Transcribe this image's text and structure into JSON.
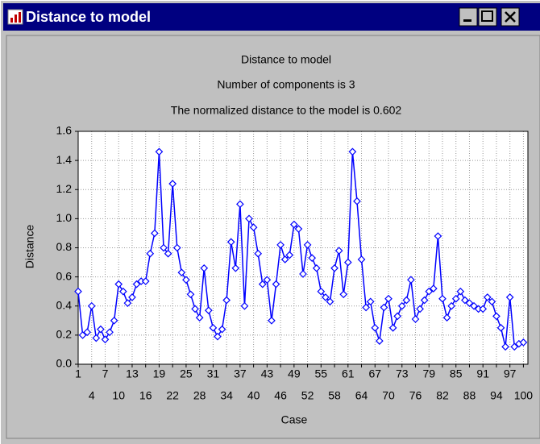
{
  "window": {
    "title": "Distance to model"
  },
  "chart_data": {
    "type": "line",
    "title": "Distance to model",
    "subtitle": [
      "Number of components is 3",
      "The normalized distance to the model is 0.602"
    ],
    "x_label": "Case",
    "y_label": "Distance",
    "x": [
      1,
      2,
      3,
      4,
      5,
      6,
      7,
      8,
      9,
      10,
      11,
      12,
      13,
      14,
      15,
      16,
      17,
      18,
      19,
      20,
      21,
      22,
      23,
      24,
      25,
      26,
      27,
      28,
      29,
      30,
      31,
      32,
      33,
      34,
      35,
      36,
      37,
      38,
      39,
      40,
      41,
      42,
      43,
      44,
      45,
      46,
      47,
      48,
      49,
      50,
      51,
      52,
      53,
      54,
      55,
      56,
      57,
      58,
      59,
      60,
      61,
      62,
      63,
      64,
      65,
      66,
      67,
      68,
      69,
      70,
      71,
      72,
      73,
      74,
      75,
      76,
      77,
      78,
      79,
      80,
      81,
      82,
      83,
      84,
      85,
      86,
      87,
      88,
      89,
      90,
      91,
      92,
      93,
      94,
      95,
      96,
      97,
      98,
      99,
      100
    ],
    "series": [
      {
        "color": "#0000ff",
        "values": [
          0.5,
          0.2,
          0.22,
          0.4,
          0.18,
          0.24,
          0.17,
          0.22,
          0.3,
          0.55,
          0.5,
          0.42,
          0.46,
          0.55,
          0.57,
          0.57,
          0.76,
          0.9,
          1.46,
          0.8,
          0.76,
          1.24,
          0.8,
          0.63,
          0.58,
          0.48,
          0.38,
          0.32,
          0.66,
          0.37,
          0.25,
          0.19,
          0.24,
          0.44,
          0.84,
          0.66,
          1.1,
          0.4,
          1.0,
          0.94,
          0.76,
          0.55,
          0.58,
          0.3,
          0.55,
          0.82,
          0.72,
          0.75,
          0.96,
          0.93,
          0.62,
          0.82,
          0.73,
          0.66,
          0.5,
          0.46,
          0.43,
          0.66,
          0.78,
          0.48,
          0.7,
          1.46,
          1.12,
          0.72,
          0.39,
          0.43,
          0.25,
          0.16,
          0.39,
          0.45,
          0.25,
          0.33,
          0.4,
          0.44,
          0.58,
          0.31,
          0.38,
          0.44,
          0.5,
          0.52,
          0.88,
          0.45,
          0.32,
          0.4,
          0.45,
          0.5,
          0.44,
          0.42,
          0.4,
          0.38,
          0.38,
          0.46,
          0.43,
          0.33,
          0.25,
          0.12,
          0.46,
          0.12,
          0.14,
          0.15
        ]
      }
    ],
    "xlim": [
      1,
      101
    ],
    "xticks": [
      1,
      4,
      7,
      10,
      13,
      16,
      19,
      22,
      25,
      28,
      31,
      34,
      37,
      40,
      43,
      46,
      49,
      52,
      55,
      58,
      61,
      64,
      67,
      70,
      73,
      76,
      79,
      82,
      85,
      88,
      91,
      94,
      97,
      100
    ],
    "ylim": [
      0,
      1.6
    ],
    "yticks": [
      {
        "value": 0,
        "label": "0.0"
      },
      {
        "value": 0.2,
        "label": "0.2"
      },
      {
        "value": 0.4,
        "label": "0.4"
      },
      {
        "value": 0.6,
        "label": "0.6"
      },
      {
        "value": 0.8,
        "label": "0.8"
      },
      {
        "value": 1.0,
        "label": "1.0"
      },
      {
        "value": 1.2,
        "label": "1.2"
      },
      {
        "value": 1.4,
        "label": "1.4"
      },
      {
        "value": 1.6,
        "label": "1.6"
      }
    ],
    "grid": true
  }
}
